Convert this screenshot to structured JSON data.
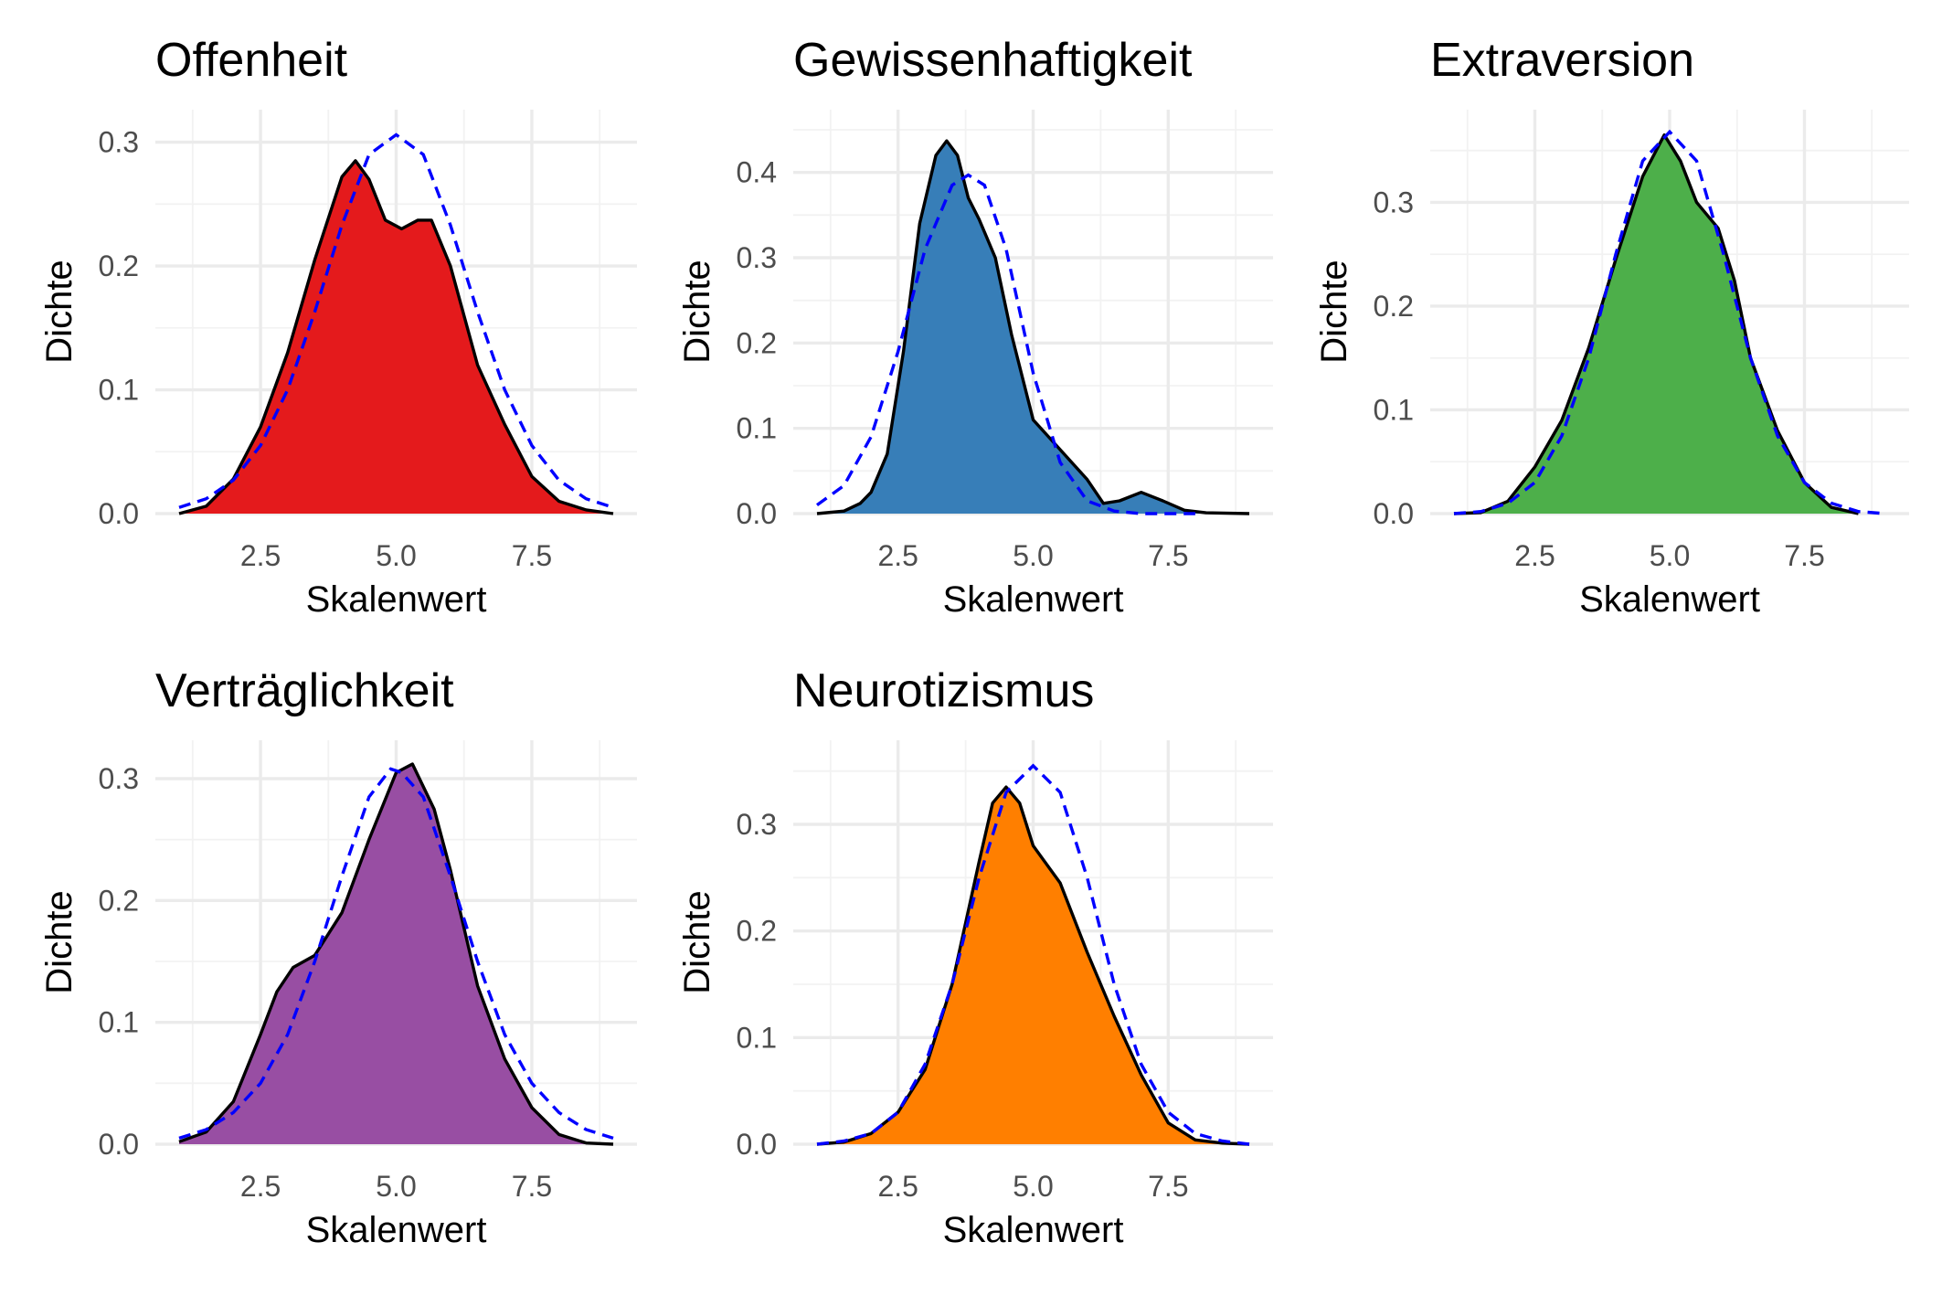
{
  "chart_data": [
    {
      "type": "area",
      "title": "Offenheit",
      "xlabel": "Skalenwert",
      "ylabel": "Dichte",
      "xlim": [
        1,
        9
      ],
      "ylim": [
        0,
        0.31
      ],
      "x_ticks": [
        "2.5",
        "5.0",
        "7.5"
      ],
      "y_ticks": [
        "0.0",
        "0.1",
        "0.2",
        "0.3"
      ],
      "fill_color": "#E41A1C",
      "density": {
        "x": [
          1.0,
          1.5,
          2.0,
          2.5,
          3.0,
          3.5,
          4.0,
          4.25,
          4.5,
          4.8,
          5.1,
          5.4,
          5.65,
          6.0,
          6.5,
          7.0,
          7.5,
          8.0,
          8.5,
          9.0
        ],
        "y": [
          0.0,
          0.006,
          0.028,
          0.07,
          0.13,
          0.205,
          0.272,
          0.285,
          0.27,
          0.237,
          0.23,
          0.237,
          0.237,
          0.2,
          0.12,
          0.072,
          0.03,
          0.01,
          0.003,
          0.0
        ]
      },
      "normal": {
        "x": [
          1.0,
          1.5,
          2.0,
          2.5,
          3.0,
          3.5,
          4.0,
          4.5,
          5.0,
          5.5,
          6.0,
          6.5,
          7.0,
          7.5,
          8.0,
          8.5,
          9.0
        ],
        "y": [
          0.005,
          0.012,
          0.027,
          0.055,
          0.1,
          0.163,
          0.233,
          0.29,
          0.306,
          0.29,
          0.233,
          0.163,
          0.1,
          0.055,
          0.027,
          0.012,
          0.005
        ]
      }
    },
    {
      "type": "area",
      "title": "Gewissenhaftigkeit",
      "xlabel": "Skalenwert",
      "ylabel": "Dichte",
      "xlim": [
        1,
        9
      ],
      "ylim": [
        0,
        0.45
      ],
      "x_ticks": [
        "2.5",
        "5.0",
        "7.5"
      ],
      "y_ticks": [
        "0.0",
        "0.1",
        "0.2",
        "0.3",
        "0.4"
      ],
      "fill_color": "#377EB8",
      "density": {
        "x": [
          1.0,
          1.5,
          1.8,
          2.0,
          2.3,
          2.6,
          2.9,
          3.2,
          3.4,
          3.6,
          3.8,
          4.0,
          4.3,
          4.6,
          5.0,
          5.5,
          6.0,
          6.3,
          6.6,
          7.0,
          7.4,
          7.8,
          8.2,
          9.0
        ],
        "y": [
          0.0,
          0.003,
          0.012,
          0.025,
          0.07,
          0.19,
          0.34,
          0.42,
          0.437,
          0.42,
          0.37,
          0.345,
          0.3,
          0.21,
          0.11,
          0.075,
          0.04,
          0.012,
          0.015,
          0.025,
          0.015,
          0.004,
          0.001,
          0.0
        ]
      },
      "normal": {
        "x": [
          1.0,
          1.5,
          2.0,
          2.5,
          3.0,
          3.5,
          3.8,
          4.1,
          4.5,
          5.0,
          5.5,
          6.0,
          6.5,
          7.0,
          7.5,
          8.0
        ],
        "y": [
          0.01,
          0.033,
          0.09,
          0.19,
          0.31,
          0.385,
          0.397,
          0.385,
          0.31,
          0.165,
          0.06,
          0.015,
          0.003,
          0.0,
          0.0,
          0.0
        ]
      }
    },
    {
      "type": "area",
      "title": "Extraversion",
      "xlabel": "Skalenwert",
      "ylabel": "Dichte",
      "xlim": [
        1,
        9
      ],
      "ylim": [
        0,
        0.37
      ],
      "x_ticks": [
        "2.5",
        "5.0",
        "7.5"
      ],
      "y_ticks": [
        "0.0",
        "0.1",
        "0.2",
        "0.3"
      ],
      "fill_color": "#4DAF4A",
      "density": {
        "x": [
          1.0,
          1.5,
          2.0,
          2.5,
          3.0,
          3.5,
          4.0,
          4.5,
          4.9,
          5.2,
          5.5,
          5.9,
          6.2,
          6.5,
          7.0,
          7.5,
          8.0,
          8.5
        ],
        "y": [
          0.0,
          0.001,
          0.012,
          0.045,
          0.09,
          0.16,
          0.245,
          0.325,
          0.365,
          0.34,
          0.3,
          0.275,
          0.225,
          0.15,
          0.08,
          0.03,
          0.006,
          0.0
        ]
      },
      "normal": {
        "x": [
          1.0,
          1.5,
          2.0,
          2.5,
          3.0,
          3.5,
          4.0,
          4.5,
          5.0,
          5.5,
          6.0,
          6.5,
          7.0,
          7.5,
          8.0,
          8.5,
          9.0
        ],
        "y": [
          0.0,
          0.002,
          0.01,
          0.03,
          0.075,
          0.15,
          0.25,
          0.34,
          0.368,
          0.34,
          0.25,
          0.15,
          0.075,
          0.03,
          0.01,
          0.002,
          0.0
        ]
      }
    },
    {
      "type": "area",
      "title": "Verträglichkeit",
      "xlabel": "Skalenwert",
      "ylabel": "Dichte",
      "xlim": [
        1,
        9
      ],
      "ylim": [
        0,
        0.315
      ],
      "x_ticks": [
        "2.5",
        "5.0",
        "7.5"
      ],
      "y_ticks": [
        "0.0",
        "0.1",
        "0.2",
        "0.3"
      ],
      "fill_color": "#984EA3",
      "density": {
        "x": [
          1.0,
          1.5,
          2.0,
          2.5,
          2.8,
          3.1,
          3.5,
          4.0,
          4.5,
          5.0,
          5.3,
          5.7,
          6.0,
          6.5,
          7.0,
          7.5,
          8.0,
          8.5,
          9.0
        ],
        "y": [
          0.002,
          0.01,
          0.035,
          0.09,
          0.125,
          0.145,
          0.155,
          0.19,
          0.25,
          0.305,
          0.312,
          0.275,
          0.225,
          0.13,
          0.07,
          0.03,
          0.008,
          0.001,
          0.0
        ]
      },
      "normal": {
        "x": [
          1.0,
          1.5,
          2.0,
          2.5,
          3.0,
          3.5,
          4.0,
          4.5,
          4.9,
          5.1,
          5.5,
          6.0,
          6.5,
          7.0,
          7.5,
          8.0,
          8.5,
          9.0
        ],
        "y": [
          0.005,
          0.012,
          0.026,
          0.05,
          0.09,
          0.15,
          0.22,
          0.285,
          0.308,
          0.305,
          0.285,
          0.22,
          0.15,
          0.09,
          0.05,
          0.026,
          0.012,
          0.005
        ]
      }
    },
    {
      "type": "area",
      "title": "Neurotizismus",
      "xlabel": "Skalenwert",
      "ylabel": "Dichte",
      "xlim": [
        1,
        9
      ],
      "ylim": [
        0,
        0.36
      ],
      "x_ticks": [
        "2.5",
        "5.0",
        "7.5"
      ],
      "y_ticks": [
        "0.0",
        "0.1",
        "0.2",
        "0.3"
      ],
      "fill_color": "#FF7F00",
      "density": {
        "x": [
          1.0,
          1.5,
          2.0,
          2.5,
          3.0,
          3.5,
          4.0,
          4.25,
          4.5,
          4.75,
          5.0,
          5.5,
          6.0,
          6.5,
          7.0,
          7.5,
          8.0,
          8.5,
          9.0
        ],
        "y": [
          0.0,
          0.002,
          0.01,
          0.03,
          0.07,
          0.15,
          0.265,
          0.32,
          0.335,
          0.32,
          0.28,
          0.245,
          0.18,
          0.12,
          0.065,
          0.02,
          0.004,
          0.001,
          0.0
        ]
      },
      "normal": {
        "x": [
          1.0,
          1.5,
          2.0,
          2.5,
          3.0,
          3.5,
          4.0,
          4.5,
          5.0,
          5.5,
          6.0,
          6.5,
          7.0,
          7.5,
          8.0,
          8.5,
          9.0
        ],
        "y": [
          0.0,
          0.003,
          0.01,
          0.03,
          0.075,
          0.15,
          0.25,
          0.33,
          0.355,
          0.33,
          0.25,
          0.15,
          0.075,
          0.03,
          0.01,
          0.003,
          0.0
        ]
      }
    }
  ],
  "normal_line_color": "#0000FF",
  "density_line_color": "#000000"
}
